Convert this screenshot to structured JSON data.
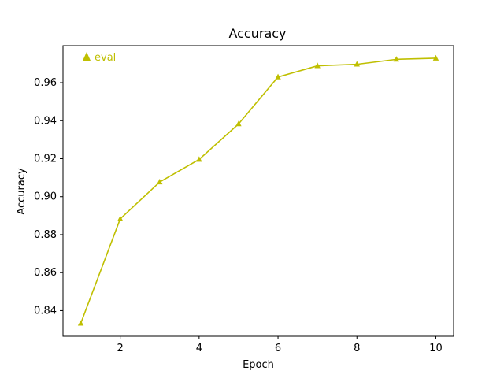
{
  "chart_data": {
    "type": "line",
    "title": "Accuracy",
    "xlabel": "Epoch",
    "ylabel": "Accuracy",
    "xlim": [
      0.55,
      10.45
    ],
    "ylim": [
      0.8265,
      0.9795
    ],
    "xticks": [
      2,
      4,
      6,
      8,
      10
    ],
    "yticks": [
      0.84,
      0.86,
      0.88,
      0.9,
      0.92,
      0.94,
      0.96
    ],
    "ytick_labels": [
      "0.84",
      "0.86",
      "0.88",
      "0.90",
      "0.92",
      "0.94",
      "0.96"
    ],
    "grid": false,
    "legend_position": "top-left",
    "series": [
      {
        "name": "eval",
        "color": "#bfbf00",
        "marker": "triangle",
        "x": [
          1,
          2,
          3,
          4,
          5,
          6,
          7,
          8,
          9,
          10
        ],
        "y": [
          0.8333,
          0.8883,
          0.9077,
          0.9196,
          0.9383,
          0.963,
          0.9689,
          0.9697,
          0.9723,
          0.9729
        ]
      }
    ]
  }
}
